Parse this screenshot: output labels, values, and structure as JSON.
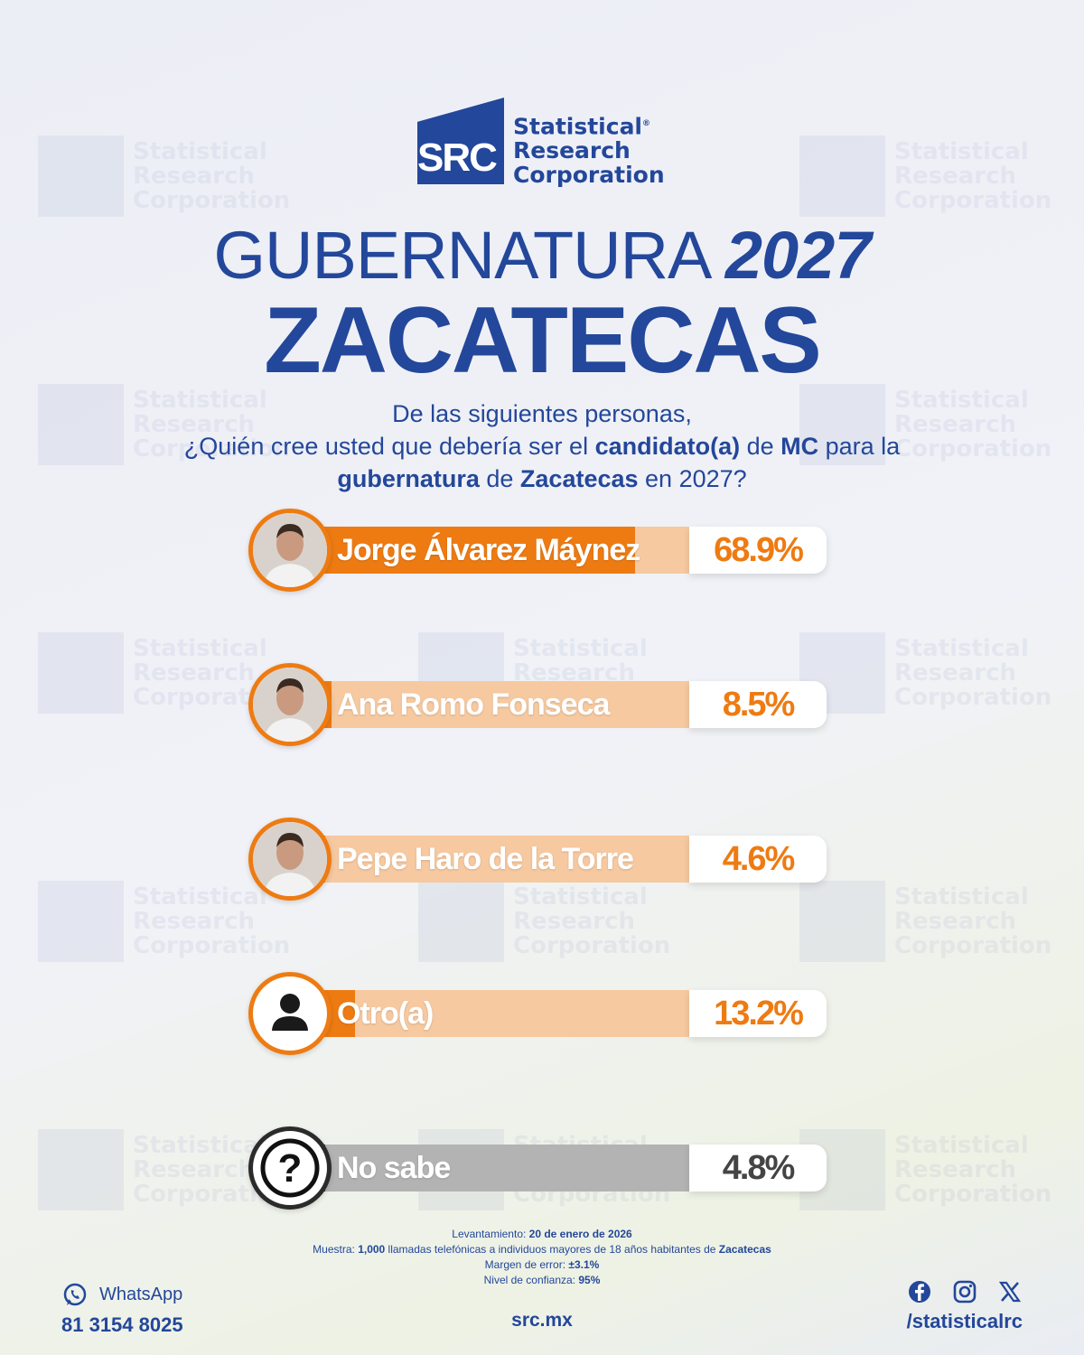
{
  "logo": {
    "mark": "SRC",
    "line1": "Statistical",
    "line2": "Research",
    "line3": "Corporation"
  },
  "header": {
    "title_main": "GUBERNATURA",
    "title_year": "2027",
    "state": "ZACATECAS"
  },
  "question": {
    "line1": "De las siguientes personas,",
    "line2_a": "¿Quién cree usted que debería ser el ",
    "line2_b": "candidato(a)",
    "line2_c": " de ",
    "line2_d": "MC",
    "line2_e": " para la",
    "line3_a": "gubernatura",
    "line3_b": " de ",
    "line3_c": "Zacatecas",
    "line3_d": " en 2027?"
  },
  "chart_data": {
    "type": "bar",
    "categories": [
      "Jorge Álvarez Máynez",
      "Ana Romo Fonseca",
      "Pepe Haro de la Torre",
      "Otro(a)",
      "No sabe"
    ],
    "values": [
      68.9,
      8.5,
      4.6,
      13.2,
      4.8
    ],
    "value_labels": [
      "68.9%",
      "8.5%",
      "4.6%",
      "13.2%",
      "4.8%"
    ],
    "avatar_icons": [
      "person-photo-icon",
      "person-photo-icon",
      "person-photo-icon",
      "user-silhouette-icon",
      "question-mark-icon"
    ],
    "colors": {
      "primary": "#ee7b12",
      "primary_track": "#f6c9a0",
      "neutral": "#3d3d3d",
      "neutral_track": "#b3b3b3"
    }
  },
  "footer": {
    "notes": {
      "survey_label": "Levantamiento: ",
      "survey_date": "20 de enero de 2026",
      "sample_label": "Muestra: ",
      "sample_count": "1,000",
      "sample_text": " llamadas telefónicas a individuos mayores de 18 años habitantes de ",
      "sample_place": "Zacatecas",
      "margin_label": "Margen de error: ",
      "margin_value": "±3.1%",
      "confidence_label": "Nivel de confianza: ",
      "confidence_value": "95%"
    },
    "whatsapp_label": "WhatsApp",
    "phone": "81 3154 8025",
    "website": "src.mx",
    "social_handle": "/statisticalrc"
  },
  "colors": {
    "brand_blue": "#23479a",
    "accent_orange": "#ee7b12"
  }
}
